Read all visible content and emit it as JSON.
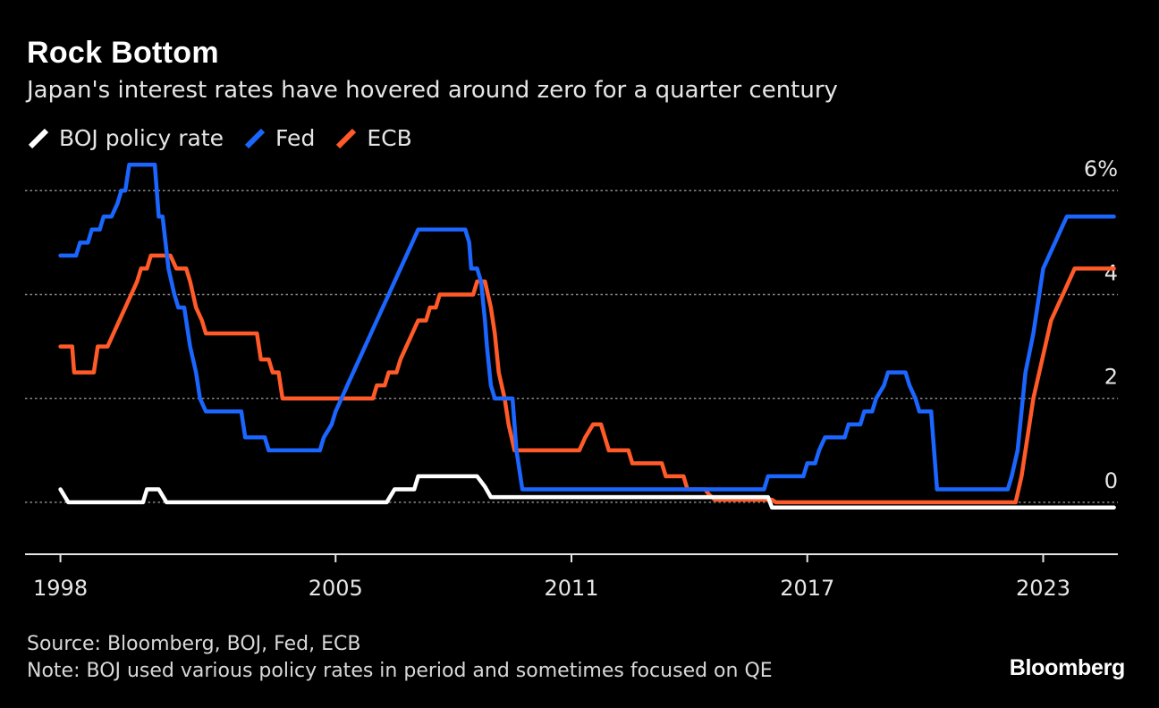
{
  "header": {
    "title": "Rock Bottom",
    "subtitle": "Japan's interest rates have hovered around zero for a quarter century"
  },
  "footer": {
    "source": "Source: Bloomberg, BOJ, Fed, ECB",
    "note": "Note: BOJ used various policy rates in period and sometimes focused on QE",
    "brand": "Bloomberg"
  },
  "chart_data": {
    "type": "line",
    "xlim": [
      1997.1,
      2024.9
    ],
    "ylim": [
      -1.0,
      6.4
    ],
    "x_ticks": [
      1998,
      2005,
      2011,
      2017,
      2023
    ],
    "x_tick_labels": [
      "1998",
      "2005",
      "2011",
      "2017",
      "2023"
    ],
    "y_ticks": [
      0,
      2,
      4,
      6
    ],
    "y_tick_labels": [
      "0",
      "2",
      "4",
      "6%"
    ],
    "grid": true,
    "legend_position": "top-left",
    "series": [
      {
        "name": "BOJ policy rate",
        "color": "#ffffff",
        "points": [
          [
            1998.0,
            0.25
          ],
          [
            1998.2,
            0.0
          ],
          [
            1999.2,
            0.0
          ],
          [
            1999.6,
            0.0
          ],
          [
            2000.1,
            0.0
          ],
          [
            2000.2,
            0.25
          ],
          [
            2000.5,
            0.25
          ],
          [
            2000.7,
            0.0
          ],
          [
            2003.0,
            0.0
          ],
          [
            2006.3,
            0.0
          ],
          [
            2006.5,
            0.25
          ],
          [
            2007.0,
            0.25
          ],
          [
            2007.1,
            0.5
          ],
          [
            2008.6,
            0.5
          ],
          [
            2008.8,
            0.3
          ],
          [
            2008.95,
            0.1
          ],
          [
            2012.0,
            0.1
          ],
          [
            2016.0,
            0.1
          ],
          [
            2016.1,
            -0.1
          ],
          [
            2024.8,
            -0.1
          ]
        ]
      },
      {
        "name": "Fed",
        "color": "#1a66ff",
        "points": [
          [
            1998.0,
            4.75
          ],
          [
            1998.4,
            4.75
          ],
          [
            1998.5,
            5.0
          ],
          [
            1998.7,
            5.0
          ],
          [
            1998.8,
            5.25
          ],
          [
            1999.0,
            5.25
          ],
          [
            1999.1,
            5.5
          ],
          [
            1999.3,
            5.5
          ],
          [
            1999.45,
            5.75
          ],
          [
            1999.55,
            6.0
          ],
          [
            1999.65,
            6.0
          ],
          [
            1999.75,
            6.5
          ],
          [
            2000.4,
            6.5
          ],
          [
            2000.5,
            5.5
          ],
          [
            2000.6,
            5.5
          ],
          [
            2000.75,
            4.5
          ],
          [
            2000.9,
            4.0
          ],
          [
            2001.0,
            3.75
          ],
          [
            2001.15,
            3.75
          ],
          [
            2001.3,
            3.0
          ],
          [
            2001.45,
            2.5
          ],
          [
            2001.55,
            2.0
          ],
          [
            2001.7,
            1.75
          ],
          [
            2002.6,
            1.75
          ],
          [
            2002.7,
            1.25
          ],
          [
            2003.2,
            1.25
          ],
          [
            2003.3,
            1.0
          ],
          [
            2004.6,
            1.0
          ],
          [
            2004.7,
            1.25
          ],
          [
            2004.9,
            1.5
          ],
          [
            2005.0,
            1.75
          ],
          [
            2005.15,
            2.0
          ],
          [
            2005.3,
            2.25
          ],
          [
            2005.45,
            2.5
          ],
          [
            2005.6,
            2.75
          ],
          [
            2005.75,
            3.0
          ],
          [
            2005.9,
            3.25
          ],
          [
            2006.05,
            3.5
          ],
          [
            2006.2,
            3.75
          ],
          [
            2006.35,
            4.0
          ],
          [
            2006.5,
            4.25
          ],
          [
            2006.65,
            4.5
          ],
          [
            2006.8,
            4.75
          ],
          [
            2006.95,
            5.0
          ],
          [
            2007.1,
            5.25
          ],
          [
            2008.3,
            5.25
          ],
          [
            2008.4,
            5.0
          ],
          [
            2008.45,
            4.5
          ],
          [
            2008.6,
            4.5
          ],
          [
            2008.7,
            4.25
          ],
          [
            2008.8,
            3.5
          ],
          [
            2008.85,
            3.0
          ],
          [
            2008.95,
            2.25
          ],
          [
            2009.05,
            2.0
          ],
          [
            2009.5,
            2.0
          ],
          [
            2009.6,
            1.0
          ],
          [
            2009.75,
            0.25
          ],
          [
            2015.9,
            0.25
          ],
          [
            2016.0,
            0.5
          ],
          [
            2016.9,
            0.5
          ],
          [
            2017.0,
            0.75
          ],
          [
            2017.2,
            0.75
          ],
          [
            2017.3,
            1.0
          ],
          [
            2017.45,
            1.25
          ],
          [
            2017.95,
            1.25
          ],
          [
            2018.05,
            1.5
          ],
          [
            2018.35,
            1.5
          ],
          [
            2018.45,
            1.75
          ],
          [
            2018.65,
            1.75
          ],
          [
            2018.75,
            2.0
          ],
          [
            2018.95,
            2.25
          ],
          [
            2019.05,
            2.5
          ],
          [
            2019.5,
            2.5
          ],
          [
            2019.6,
            2.25
          ],
          [
            2019.75,
            2.0
          ],
          [
            2019.85,
            1.75
          ],
          [
            2020.15,
            1.75
          ],
          [
            2020.2,
            1.25
          ],
          [
            2020.3,
            0.25
          ],
          [
            2022.1,
            0.25
          ],
          [
            2022.2,
            0.5
          ],
          [
            2022.35,
            1.0
          ],
          [
            2022.45,
            1.75
          ],
          [
            2022.55,
            2.5
          ],
          [
            2022.75,
            3.25
          ],
          [
            2022.9,
            4.0
          ],
          [
            2023.0,
            4.5
          ],
          [
            2023.15,
            4.75
          ],
          [
            2023.3,
            5.0
          ],
          [
            2023.45,
            5.25
          ],
          [
            2023.6,
            5.5
          ],
          [
            2024.8,
            5.5
          ]
        ]
      },
      {
        "name": "ECB",
        "color": "#ff5a28",
        "points": [
          [
            1998.0,
            3.0
          ],
          [
            1998.3,
            3.0
          ],
          [
            1998.35,
            2.5
          ],
          [
            1998.85,
            2.5
          ],
          [
            1998.95,
            3.0
          ],
          [
            1999.2,
            3.0
          ],
          [
            1999.35,
            3.25
          ],
          [
            1999.5,
            3.5
          ],
          [
            1999.65,
            3.75
          ],
          [
            1999.8,
            4.0
          ],
          [
            1999.95,
            4.25
          ],
          [
            2000.05,
            4.5
          ],
          [
            2000.2,
            4.5
          ],
          [
            2000.3,
            4.75
          ],
          [
            2000.8,
            4.75
          ],
          [
            2000.95,
            4.5
          ],
          [
            2001.2,
            4.5
          ],
          [
            2001.3,
            4.25
          ],
          [
            2001.45,
            3.75
          ],
          [
            2001.6,
            3.5
          ],
          [
            2001.7,
            3.25
          ],
          [
            2003.0,
            3.25
          ],
          [
            2003.1,
            2.75
          ],
          [
            2003.3,
            2.75
          ],
          [
            2003.4,
            2.5
          ],
          [
            2003.55,
            2.5
          ],
          [
            2003.65,
            2.0
          ],
          [
            2005.95,
            2.0
          ],
          [
            2006.05,
            2.25
          ],
          [
            2006.25,
            2.25
          ],
          [
            2006.35,
            2.5
          ],
          [
            2006.55,
            2.5
          ],
          [
            2006.65,
            2.75
          ],
          [
            2006.8,
            3.0
          ],
          [
            2006.95,
            3.25
          ],
          [
            2007.1,
            3.5
          ],
          [
            2007.3,
            3.5
          ],
          [
            2007.4,
            3.75
          ],
          [
            2007.55,
            3.75
          ],
          [
            2007.65,
            4.0
          ],
          [
            2008.5,
            4.0
          ],
          [
            2008.6,
            4.25
          ],
          [
            2008.8,
            4.25
          ],
          [
            2008.95,
            3.75
          ],
          [
            2009.05,
            3.25
          ],
          [
            2009.15,
            2.5
          ],
          [
            2009.3,
            2.0
          ],
          [
            2009.4,
            1.5
          ],
          [
            2009.55,
            1.0
          ],
          [
            2011.2,
            1.0
          ],
          [
            2011.35,
            1.25
          ],
          [
            2011.55,
            1.5
          ],
          [
            2011.75,
            1.5
          ],
          [
            2011.85,
            1.25
          ],
          [
            2011.95,
            1.0
          ],
          [
            2012.45,
            1.0
          ],
          [
            2012.55,
            0.75
          ],
          [
            2013.3,
            0.75
          ],
          [
            2013.4,
            0.5
          ],
          [
            2013.85,
            0.5
          ],
          [
            2013.95,
            0.25
          ],
          [
            2014.4,
            0.25
          ],
          [
            2014.5,
            0.15
          ],
          [
            2014.65,
            0.05
          ],
          [
            2016.1,
            0.05
          ],
          [
            2016.2,
            0.0
          ],
          [
            2022.3,
            0.0
          ],
          [
            2022.45,
            0.5
          ],
          [
            2022.6,
            1.25
          ],
          [
            2022.75,
            2.0
          ],
          [
            2022.9,
            2.5
          ],
          [
            2023.05,
            3.0
          ],
          [
            2023.2,
            3.5
          ],
          [
            2023.35,
            3.75
          ],
          [
            2023.5,
            4.0
          ],
          [
            2023.65,
            4.25
          ],
          [
            2023.8,
            4.5
          ],
          [
            2024.8,
            4.5
          ]
        ]
      }
    ]
  }
}
